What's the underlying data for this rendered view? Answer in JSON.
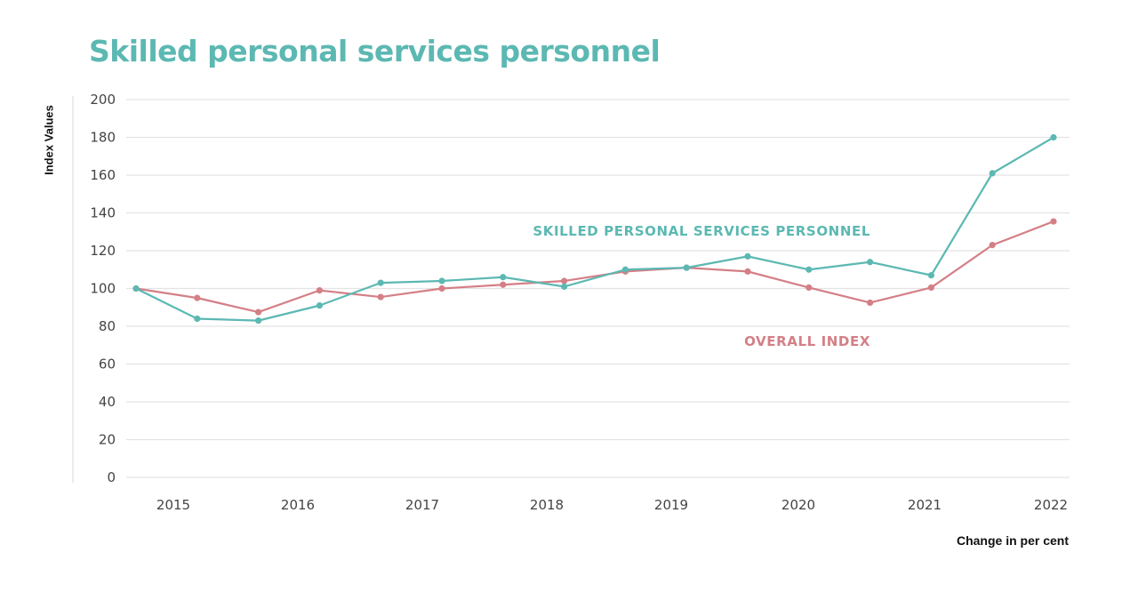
{
  "chart_data": {
    "type": "line",
    "title": "Skilled personal services personnel",
    "ylabel": "Index Values",
    "xlabel": "Change in per cent",
    "ylim": [
      0,
      200
    ],
    "yticks": [
      0,
      20,
      40,
      60,
      80,
      100,
      120,
      140,
      160,
      180,
      200
    ],
    "xtick_labels": [
      "2015",
      "2016",
      "2017",
      "2018",
      "2019",
      "2020",
      "2021",
      "2022"
    ],
    "grid": true,
    "n_points": 16,
    "series": [
      {
        "name": "SKILLED PERSONAL SERVICES PERSONNEL",
        "color": "#5cb8b2",
        "values": [
          100,
          84,
          83,
          91,
          103,
          104,
          106,
          101,
          110,
          111,
          117,
          110,
          114,
          107,
          161,
          180
        ]
      },
      {
        "name": "OVERALL INDEX",
        "color": "#d47f86",
        "values": [
          100,
          95,
          87.5,
          99,
          95.5,
          100,
          102,
          104,
          109,
          111,
          109,
          100.5,
          92.5,
          100.5,
          123,
          135.5
        ]
      }
    ]
  }
}
